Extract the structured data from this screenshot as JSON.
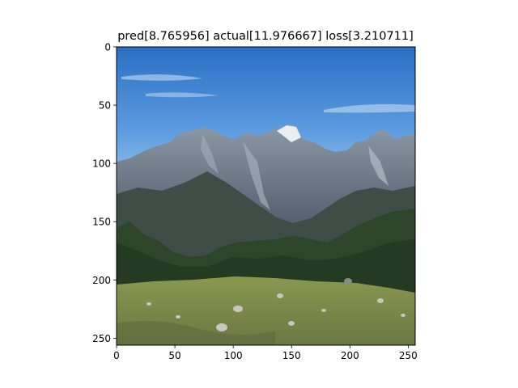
{
  "figure": {
    "title": "pred[8.765956] actual[11.976667] loss[3.210711]"
  },
  "chart_data": {
    "type": "image",
    "title": "pred[8.765956] actual[11.976667] loss[3.210711]",
    "xlim": [
      0,
      256
    ],
    "ylim": [
      256,
      0
    ],
    "x_ticks": [
      0,
      50,
      100,
      150,
      200,
      250
    ],
    "y_ticks": [
      0,
      50,
      100,
      150,
      200,
      250
    ],
    "y_axis_inverted": true,
    "grid": false,
    "legend": "none",
    "image_content": "mountain landscape photograph",
    "colors": {
      "sky_top": "#2a6fc4",
      "sky_bottom": "#8fbde8",
      "rock": "#7c8796",
      "rock_dark": "#3f4a57",
      "forest": "#2d4528",
      "meadow": "#7f8d4b"
    }
  }
}
